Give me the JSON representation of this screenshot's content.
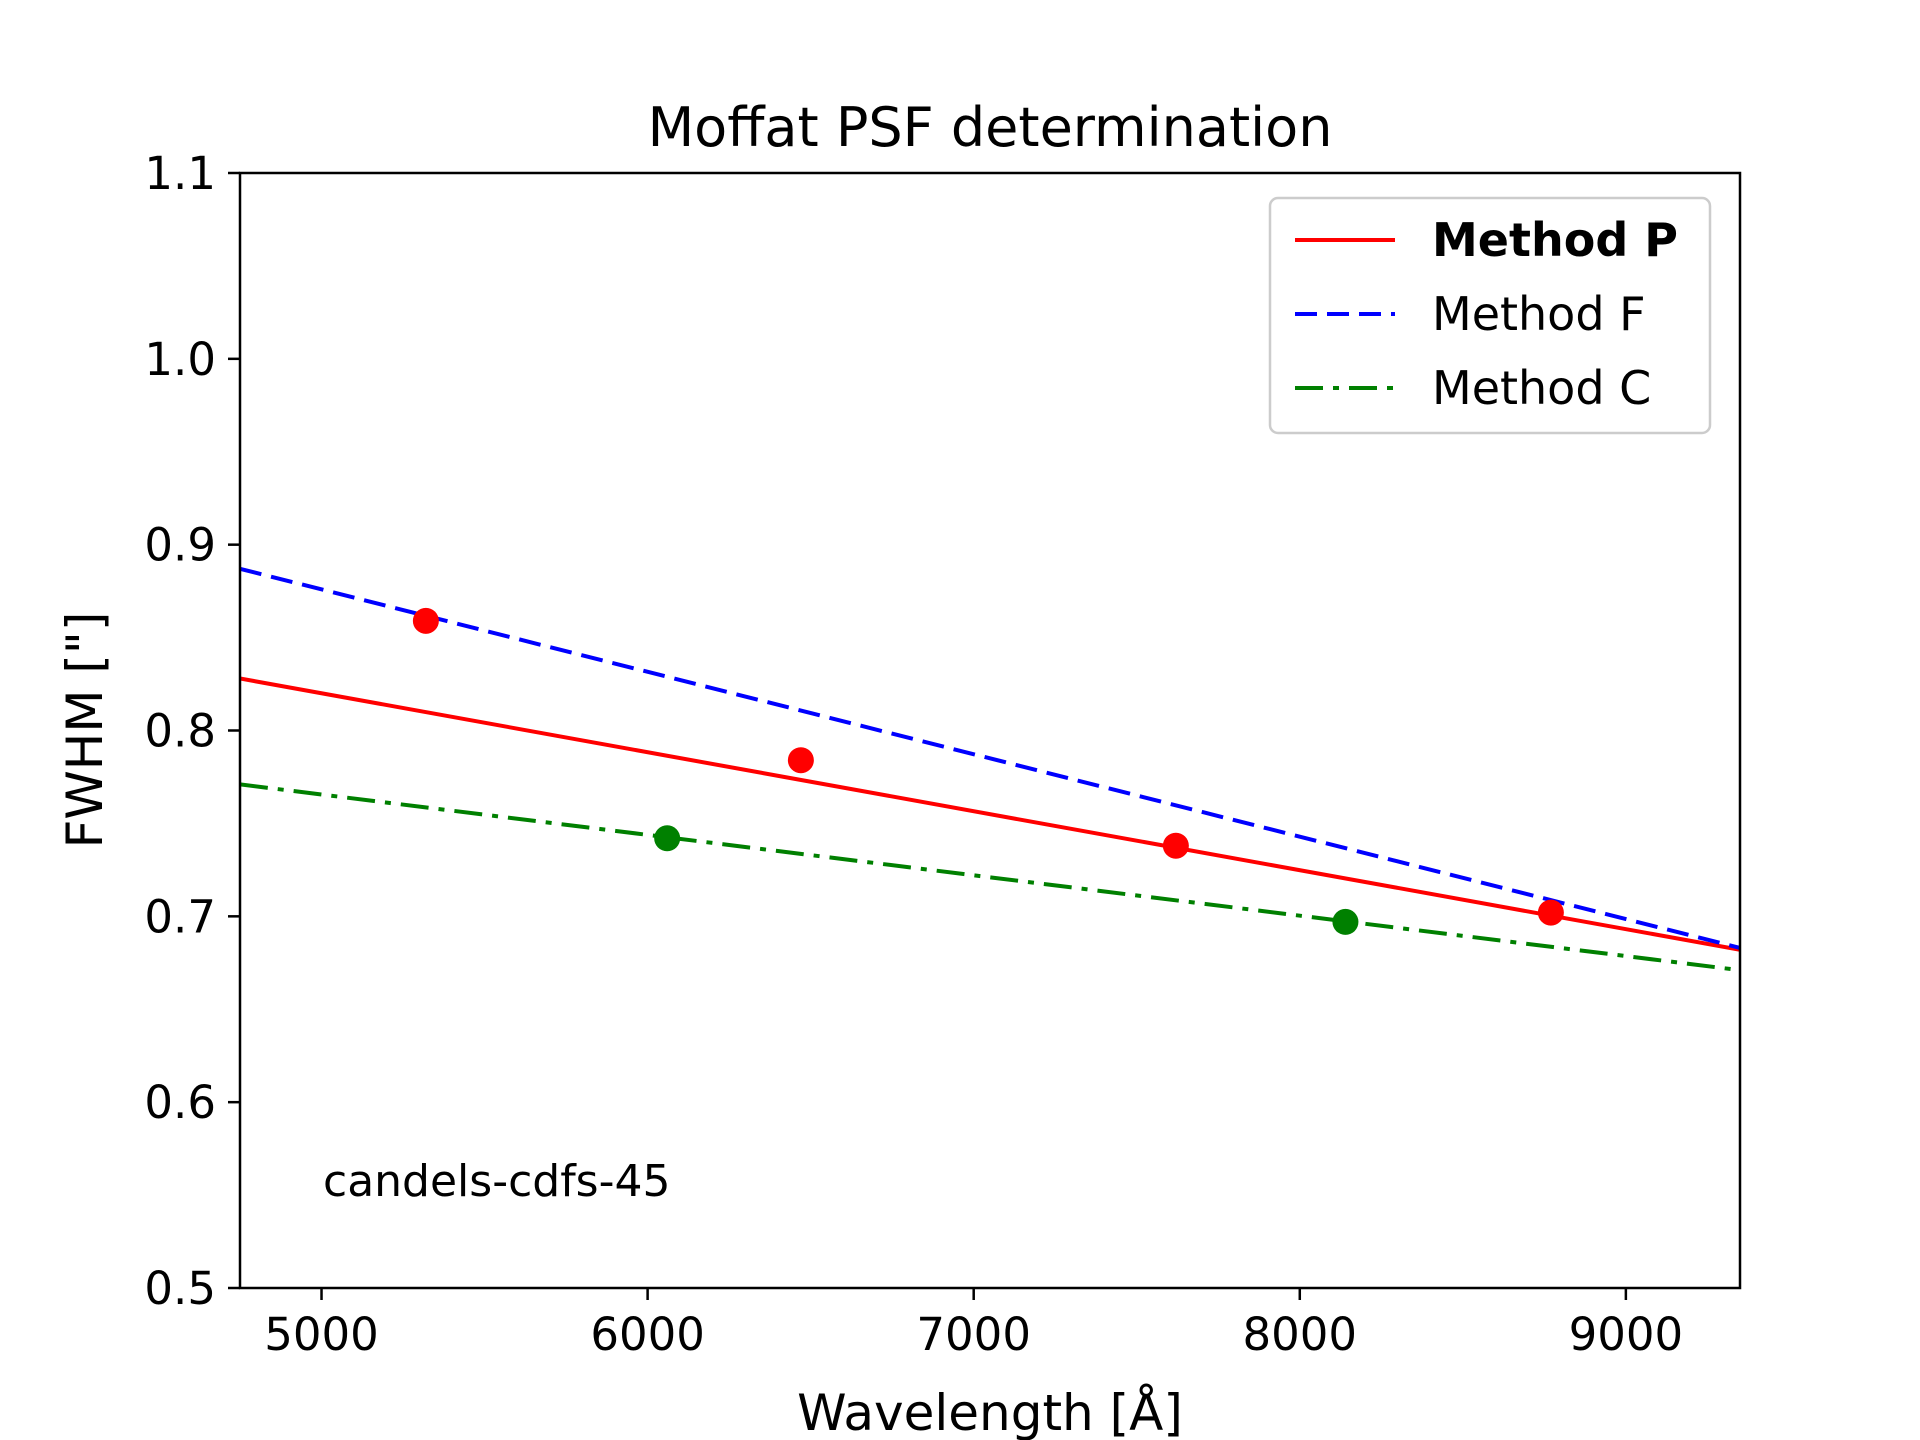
{
  "chart_data": {
    "type": "line",
    "title": "Moffat PSF determination",
    "xlabel": "Wavelength [Å]",
    "ylabel": "FWHM [\"]",
    "xlim": [
      4750,
      9350
    ],
    "ylim": [
      0.5,
      1.1
    ],
    "xticks": [
      5000,
      6000,
      7000,
      8000,
      9000
    ],
    "yticks": [
      0.5,
      0.6,
      0.7,
      0.8,
      0.9,
      1.0,
      1.1
    ],
    "xtick_labels": [
      "5000",
      "6000",
      "7000",
      "8000",
      "9000"
    ],
    "ytick_labels": [
      "0.5",
      "0.6",
      "0.7",
      "0.8",
      "0.9",
      "1.0",
      "1.1"
    ],
    "legend_position": "upper right",
    "annotation": "candels-cdfs-45",
    "series": [
      {
        "name": "Method P",
        "style": "solid",
        "color": "#ff0000",
        "bold_label": true,
        "x": [
          4750,
          9350
        ],
        "y": [
          0.828,
          0.682
        ]
      },
      {
        "name": "Method F",
        "style": "dashed",
        "color": "#0000ff",
        "bold_label": false,
        "x": [
          4750,
          9350
        ],
        "y": [
          0.887,
          0.683
        ]
      },
      {
        "name": "Method C",
        "style": "dashdot",
        "color": "#008000",
        "bold_label": false,
        "x": [
          4750,
          9350
        ],
        "y": [
          0.771,
          0.671
        ]
      }
    ],
    "points": [
      {
        "series": "P",
        "color": "#ff0000",
        "x": [
          5320,
          6470,
          7620,
          8770
        ],
        "y": [
          0.859,
          0.784,
          0.738,
          0.702
        ]
      },
      {
        "series": "C",
        "color": "#008000",
        "x": [
          6060,
          8140
        ],
        "y": [
          0.742,
          0.697
        ]
      }
    ]
  }
}
